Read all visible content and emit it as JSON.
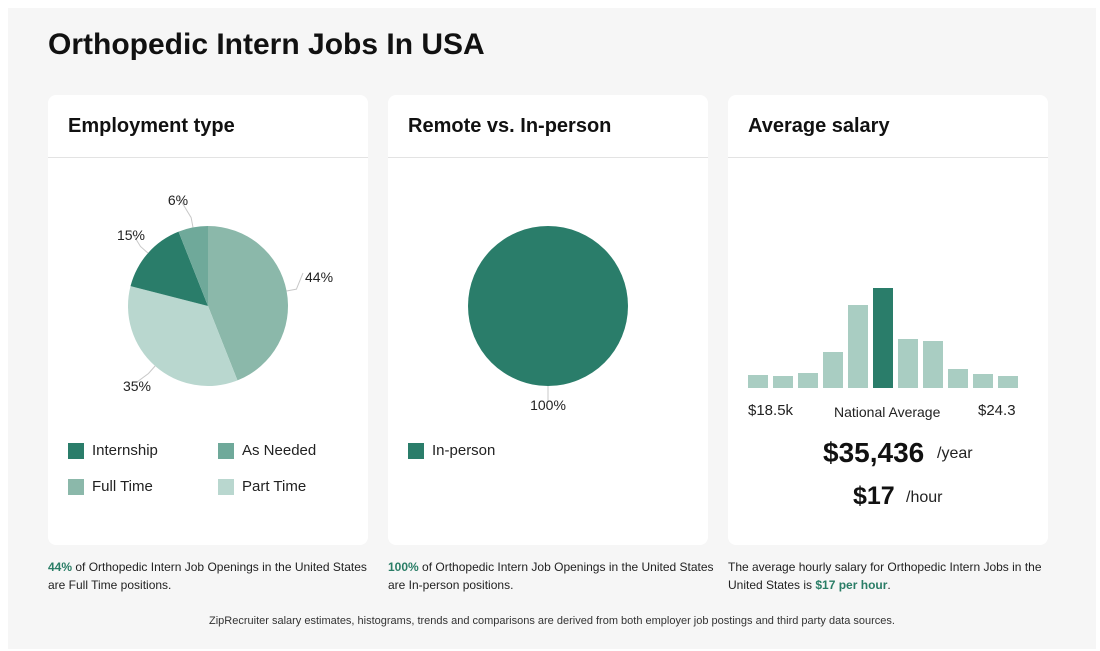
{
  "page_title": "Orthopedic Intern Jobs In USA",
  "cards": {
    "employment": {
      "title": "Employment type",
      "note": {
        "highlight": "44%",
        "text": " of Orthopedic Intern Job Openings in the United States are Full Time positions."
      }
    },
    "remote": {
      "title": "Remote vs. In-person",
      "note": {
        "highlight": "100%",
        "text": " of Orthopedic Intern Job Openings in the United States are In-person positions."
      }
    },
    "salary": {
      "title": "Average salary",
      "min_label": "$18.5k",
      "national_label": "National Average",
      "max_label": "$24.3",
      "yearly": "$35,436",
      "yearly_unit": "/year",
      "hourly": "$17",
      "hourly_unit": "/hour",
      "note": {
        "pre": "The average hourly salary for Orthopedic Intern Jobs in the United States is ",
        "highlight": "$17 per hour",
        "post": "."
      }
    }
  },
  "footer": "ZipRecruiter salary estimates, histograms, trends and comparisons are derived from both employer job postings and third party data sources.",
  "colors": {
    "dark": "#2a7d6a",
    "medium": "#6fa99a",
    "light": "#8bb8aa",
    "lighter": "#b9d7cf",
    "hist_light": "#a9cdc2"
  },
  "chart_data": [
    {
      "type": "pie",
      "title": "Employment type",
      "series": [
        {
          "name": "Full Time",
          "value": 44,
          "label": "44%",
          "color": "#8bb8aa"
        },
        {
          "name": "Part Time",
          "value": 35,
          "label": "35%",
          "color": "#b9d7cf"
        },
        {
          "name": "Internship",
          "value": 15,
          "label": "15%",
          "color": "#2a7d6a"
        },
        {
          "name": "As Needed",
          "value": 6,
          "label": "6%",
          "color": "#6fa99a"
        }
      ],
      "legend": [
        {
          "name": "Internship",
          "color": "#2a7d6a"
        },
        {
          "name": "As Needed",
          "color": "#6fa99a"
        },
        {
          "name": "Full Time",
          "color": "#8bb8aa"
        },
        {
          "name": "Part Time",
          "color": "#b9d7cf"
        }
      ]
    },
    {
      "type": "pie",
      "title": "Remote vs. In-person",
      "series": [
        {
          "name": "In-person",
          "value": 100,
          "label": "100%",
          "color": "#2a7d6a"
        }
      ],
      "legend": [
        {
          "name": "In-person",
          "color": "#2a7d6a"
        }
      ]
    },
    {
      "type": "bar",
      "title": "Average salary",
      "values": [
        13,
        12,
        15,
        36,
        83,
        100,
        49,
        47,
        19,
        14,
        12
      ],
      "highlight_index": 5
    }
  ]
}
